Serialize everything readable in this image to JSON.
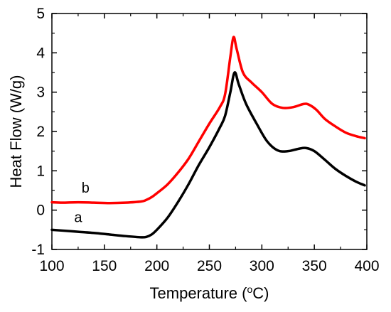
{
  "chart_data": {
    "type": "line",
    "title": "",
    "xlabel": "Temperature (",
    "xlabel_unit": "o",
    "xlabel_unit_tail": "C)",
    "ylabel": "Heat Flow (W/g)",
    "xlim": [
      100,
      400
    ],
    "ylim": [
      -1,
      5
    ],
    "x_ticks": [
      "100",
      "150",
      "200",
      "250",
      "300",
      "350",
      "400"
    ],
    "y_ticks": [
      "-1",
      "0",
      "1",
      "2",
      "3",
      "4",
      "5"
    ],
    "grid": false,
    "series": [
      {
        "name": "a",
        "color": "#000000",
        "x": [
          100,
          110,
          125,
          140,
          155,
          170,
          185,
          190,
          195,
          200,
          210,
          220,
          230,
          240,
          250,
          260,
          265,
          270,
          274,
          278,
          285,
          295,
          305,
          315,
          325,
          335,
          342,
          350,
          360,
          370,
          380,
          390,
          398
        ],
        "y": [
          -0.5,
          -0.52,
          -0.55,
          -0.58,
          -0.62,
          -0.66,
          -0.69,
          -0.68,
          -0.62,
          -0.5,
          -0.2,
          0.2,
          0.65,
          1.15,
          1.6,
          2.1,
          2.4,
          3.0,
          3.5,
          3.2,
          2.7,
          2.2,
          1.75,
          1.52,
          1.5,
          1.56,
          1.58,
          1.5,
          1.28,
          1.05,
          0.87,
          0.72,
          0.63
        ]
      },
      {
        "name": "b",
        "color": "#ff0000",
        "x": [
          100,
          110,
          125,
          140,
          155,
          170,
          185,
          190,
          195,
          200,
          210,
          220,
          230,
          240,
          250,
          260,
          265,
          270,
          273,
          276,
          282,
          290,
          300,
          310,
          320,
          330,
          340,
          345,
          352,
          360,
          370,
          380,
          390,
          398
        ],
        "y": [
          0.2,
          0.19,
          0.2,
          0.19,
          0.18,
          0.19,
          0.22,
          0.26,
          0.33,
          0.43,
          0.65,
          0.95,
          1.3,
          1.75,
          2.2,
          2.62,
          2.95,
          3.9,
          4.4,
          4.1,
          3.5,
          3.25,
          3.0,
          2.7,
          2.6,
          2.62,
          2.7,
          2.68,
          2.55,
          2.32,
          2.13,
          1.97,
          1.88,
          1.83
        ]
      }
    ],
    "series_labels": [
      {
        "text": "a",
        "x": 125,
        "y": -0.3
      },
      {
        "text": "b",
        "x": 132,
        "y": 0.45
      }
    ]
  }
}
